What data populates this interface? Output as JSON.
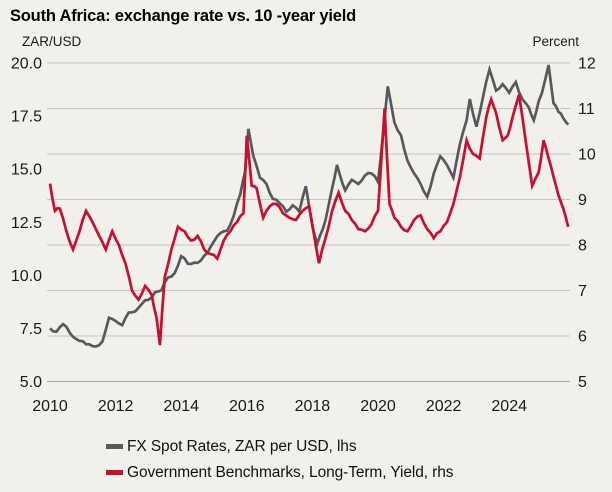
{
  "header": {
    "title": "South Africa: exchange rate vs. 10 -year yield",
    "left_axis_unit": "ZAR/USD",
    "right_axis_unit": "Percent"
  },
  "colors": {
    "background": "#f2f0eb",
    "fx_line": "#58595b",
    "yield_line": "#c8102e",
    "gridline": "#c7c5c0",
    "baseline": "#a6a49f",
    "tick_text": "#1a1a1a"
  },
  "legend": [
    {
      "label": "FX Spot Rates, ZAR per USD, lhs",
      "color_key": "fx_line"
    },
    {
      "label": "Government Benchmarks, Long-Term, Yield, rhs",
      "color_key": "yield_line"
    }
  ],
  "chart_data": {
    "type": "line",
    "title": "South Africa: exchange rate vs. 10 -year yield",
    "grid": "horizontal",
    "legend_position": "bottom",
    "x_axis": {
      "ticks": [
        2010,
        2012,
        2014,
        2016,
        2018,
        2020,
        2022,
        2024
      ],
      "min": 2010,
      "max": 2025.95
    },
    "left_axis": {
      "label": "ZAR/USD",
      "min": 5,
      "max": 20,
      "ticks": [
        "20.0",
        "17.5",
        "15.0",
        "12.5",
        "10.0",
        "7.5",
        "5.0"
      ]
    },
    "right_axis": {
      "label": "Percent",
      "min": 5,
      "max": 12,
      "ticks": [
        "12",
        "11",
        "10",
        "9",
        "8",
        "7",
        "6",
        "5"
      ]
    },
    "series": [
      {
        "name": "FX Spot Rates, ZAR per USD, lhs",
        "axis": "left",
        "color_key": "fx_line",
        "points": [
          [
            2010.0,
            7.5
          ],
          [
            2010.2,
            7.35
          ],
          [
            2010.4,
            7.7
          ],
          [
            2010.6,
            7.3
          ],
          [
            2010.8,
            7.0
          ],
          [
            2011.0,
            6.9
          ],
          [
            2011.2,
            6.75
          ],
          [
            2011.4,
            6.65
          ],
          [
            2011.6,
            6.9
          ],
          [
            2011.8,
            8.0
          ],
          [
            2012.0,
            7.85
          ],
          [
            2012.2,
            7.65
          ],
          [
            2012.4,
            8.25
          ],
          [
            2012.6,
            8.3
          ],
          [
            2012.8,
            8.65
          ],
          [
            2013.0,
            8.85
          ],
          [
            2013.2,
            9.2
          ],
          [
            2013.4,
            9.3
          ],
          [
            2013.6,
            9.9
          ],
          [
            2013.8,
            10.1
          ],
          [
            2014.0,
            10.9
          ],
          [
            2014.2,
            10.55
          ],
          [
            2014.4,
            10.6
          ],
          [
            2014.6,
            10.7
          ],
          [
            2014.8,
            11.05
          ],
          [
            2015.0,
            11.6
          ],
          [
            2015.2,
            12.0
          ],
          [
            2015.4,
            12.1
          ],
          [
            2015.6,
            12.8
          ],
          [
            2015.8,
            13.8
          ],
          [
            2015.95,
            14.9
          ],
          [
            2016.05,
            16.9
          ],
          [
            2016.2,
            15.6
          ],
          [
            2016.4,
            14.6
          ],
          [
            2016.6,
            14.3
          ],
          [
            2016.8,
            13.6
          ],
          [
            2017.0,
            13.4
          ],
          [
            2017.2,
            13.0
          ],
          [
            2017.4,
            13.3
          ],
          [
            2017.6,
            13.0
          ],
          [
            2017.8,
            14.2
          ],
          [
            2018.0,
            12.3
          ],
          [
            2018.15,
            11.5
          ],
          [
            2018.4,
            12.6
          ],
          [
            2018.6,
            14.1
          ],
          [
            2018.75,
            15.2
          ],
          [
            2019.0,
            14.0
          ],
          [
            2019.2,
            14.5
          ],
          [
            2019.4,
            14.3
          ],
          [
            2019.6,
            14.7
          ],
          [
            2019.8,
            14.8
          ],
          [
            2020.0,
            14.4
          ],
          [
            2020.3,
            18.9
          ],
          [
            2020.5,
            17.2
          ],
          [
            2020.7,
            16.6
          ],
          [
            2020.9,
            15.4
          ],
          [
            2021.1,
            14.8
          ],
          [
            2021.3,
            14.3
          ],
          [
            2021.5,
            13.7
          ],
          [
            2021.7,
            14.8
          ],
          [
            2021.9,
            15.6
          ],
          [
            2022.1,
            15.2
          ],
          [
            2022.3,
            14.6
          ],
          [
            2022.5,
            16.2
          ],
          [
            2022.7,
            17.3
          ],
          [
            2022.8,
            18.3
          ],
          [
            2023.0,
            17.0
          ],
          [
            2023.2,
            18.4
          ],
          [
            2023.4,
            19.7
          ],
          [
            2023.6,
            18.7
          ],
          [
            2023.8,
            19.0
          ],
          [
            2024.0,
            18.6
          ],
          [
            2024.2,
            19.1
          ],
          [
            2024.4,
            18.3
          ],
          [
            2024.6,
            17.9
          ],
          [
            2024.75,
            17.3
          ],
          [
            2024.9,
            18.2
          ],
          [
            2025.0,
            18.6
          ],
          [
            2025.2,
            19.9
          ],
          [
            2025.35,
            18.1
          ],
          [
            2025.5,
            17.7
          ],
          [
            2025.65,
            17.4
          ],
          [
            2025.8,
            17.1
          ]
        ]
      },
      {
        "name": "Government Benchmarks, Long-Term, Yield, rhs",
        "axis": "right",
        "color_key": "yield_line",
        "points": [
          [
            2010.0,
            9.35
          ],
          [
            2010.15,
            8.75
          ],
          [
            2010.3,
            8.8
          ],
          [
            2010.5,
            8.3
          ],
          [
            2010.7,
            7.9
          ],
          [
            2010.9,
            8.3
          ],
          [
            2011.1,
            8.75
          ],
          [
            2011.3,
            8.5
          ],
          [
            2011.5,
            8.2
          ],
          [
            2011.7,
            7.9
          ],
          [
            2011.9,
            8.3
          ],
          [
            2012.1,
            8.0
          ],
          [
            2012.3,
            7.6
          ],
          [
            2012.5,
            7.0
          ],
          [
            2012.7,
            6.8
          ],
          [
            2012.9,
            7.1
          ],
          [
            2013.1,
            6.9
          ],
          [
            2013.25,
            6.4
          ],
          [
            2013.35,
            5.8
          ],
          [
            2013.5,
            7.3
          ],
          [
            2013.7,
            7.9
          ],
          [
            2013.9,
            8.4
          ],
          [
            2014.1,
            8.3
          ],
          [
            2014.3,
            8.1
          ],
          [
            2014.5,
            8.2
          ],
          [
            2014.7,
            7.9
          ],
          [
            2014.9,
            7.8
          ],
          [
            2015.1,
            7.7
          ],
          [
            2015.3,
            8.1
          ],
          [
            2015.5,
            8.3
          ],
          [
            2015.7,
            8.5
          ],
          [
            2015.9,
            8.7
          ],
          [
            2016.0,
            10.4
          ],
          [
            2016.15,
            9.3
          ],
          [
            2016.3,
            9.25
          ],
          [
            2016.5,
            8.6
          ],
          [
            2016.7,
            8.85
          ],
          [
            2016.9,
            8.9
          ],
          [
            2017.1,
            8.7
          ],
          [
            2017.3,
            8.6
          ],
          [
            2017.5,
            8.55
          ],
          [
            2017.7,
            8.75
          ],
          [
            2017.9,
            8.85
          ],
          [
            2018.1,
            8.0
          ],
          [
            2018.2,
            7.6
          ],
          [
            2018.4,
            8.15
          ],
          [
            2018.6,
            8.75
          ],
          [
            2018.8,
            9.15
          ],
          [
            2019.0,
            8.75
          ],
          [
            2019.2,
            8.55
          ],
          [
            2019.4,
            8.35
          ],
          [
            2019.6,
            8.3
          ],
          [
            2019.8,
            8.45
          ],
          [
            2020.0,
            8.75
          ],
          [
            2020.2,
            11.0
          ],
          [
            2020.35,
            8.9
          ],
          [
            2020.5,
            8.6
          ],
          [
            2020.7,
            8.4
          ],
          [
            2020.9,
            8.3
          ],
          [
            2021.1,
            8.55
          ],
          [
            2021.3,
            8.65
          ],
          [
            2021.5,
            8.35
          ],
          [
            2021.7,
            8.15
          ],
          [
            2021.9,
            8.3
          ],
          [
            2022.1,
            8.5
          ],
          [
            2022.3,
            8.9
          ],
          [
            2022.5,
            9.5
          ],
          [
            2022.7,
            10.3
          ],
          [
            2022.9,
            10.0
          ],
          [
            2023.1,
            9.9
          ],
          [
            2023.3,
            10.8
          ],
          [
            2023.45,
            11.2
          ],
          [
            2023.6,
            10.9
          ],
          [
            2023.8,
            10.3
          ],
          [
            2023.95,
            10.4
          ],
          [
            2024.1,
            10.8
          ],
          [
            2024.3,
            11.3
          ],
          [
            2024.5,
            10.3
          ],
          [
            2024.7,
            9.3
          ],
          [
            2024.9,
            9.6
          ],
          [
            2025.05,
            10.3
          ],
          [
            2025.2,
            9.9
          ],
          [
            2025.35,
            9.5
          ],
          [
            2025.5,
            9.1
          ],
          [
            2025.65,
            8.8
          ],
          [
            2025.8,
            8.4
          ]
        ]
      }
    ]
  }
}
